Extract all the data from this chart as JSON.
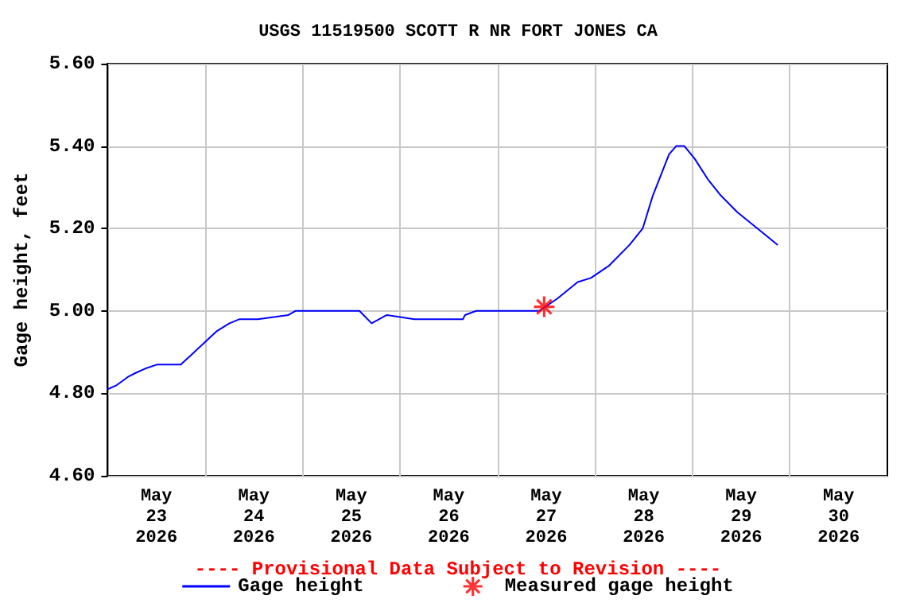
{
  "chart_data": {
    "type": "line",
    "title": "USGS 11519500 SCOTT R NR FORT JONES CA",
    "ylabel": "Gage height, feet",
    "annotations": [
      "---- Provisional Data Subject to Revision ----"
    ],
    "xlim": [
      "2026-05-23T00:00",
      "2026-05-31T00:00"
    ],
    "xticks": [
      {
        "value": "2026-05-23T12:00",
        "label": "May\n23\n2026"
      },
      {
        "value": "2026-05-24T12:00",
        "label": "May\n24\n2026"
      },
      {
        "value": "2026-05-25T12:00",
        "label": "May\n25\n2026"
      },
      {
        "value": "2026-05-26T12:00",
        "label": "May\n26\n2026"
      },
      {
        "value": "2026-05-27T12:00",
        "label": "May\n27\n2026"
      },
      {
        "value": "2026-05-28T12:00",
        "label": "May\n28\n2026"
      },
      {
        "value": "2026-05-29T12:00",
        "label": "May\n29\n2026"
      },
      {
        "value": "2026-05-30T12:00",
        "label": "May\n30\n2026"
      },
      {
        "value": "2026-05-24T00:00",
        "label": null
      },
      {
        "value": "2026-05-25T00:00",
        "label": null
      },
      {
        "value": "2026-05-26T00:00",
        "label": null
      },
      {
        "value": "2026-05-27T00:00",
        "label": null
      },
      {
        "value": "2026-05-28T00:00",
        "label": null
      },
      {
        "value": "2026-05-29T00:00",
        "label": null
      },
      {
        "value": "2026-05-30T00:00",
        "label": null
      }
    ],
    "ylim": [
      4.6,
      5.6
    ],
    "yticks": [
      {
        "value": 4.6,
        "label": "4.60"
      },
      {
        "value": 4.8,
        "label": "4.80"
      },
      {
        "value": 5.0,
        "label": "5.00"
      },
      {
        "value": 5.2,
        "label": "5.20"
      },
      {
        "value": 5.4,
        "label": "5.40"
      },
      {
        "value": 5.6,
        "label": "5.60"
      }
    ],
    "grid": true,
    "legend": "bottom",
    "series": [
      {
        "name": "Gage height",
        "color": "#0000ff",
        "marker": "none",
        "line_style": "solid",
        "x": [
          "2026-05-23T00:00",
          "2026-05-23T02:15",
          "2026-05-23T05:00",
          "2026-05-23T07:00",
          "2026-05-23T09:15",
          "2026-05-23T12:15",
          "2026-05-23T18:00",
          "2026-05-23T20:15",
          "2026-05-23T23:30",
          "2026-05-24T02:45",
          "2026-05-24T06:00",
          "2026-05-24T08:30",
          "2026-05-24T13:00",
          "2026-05-24T20:30",
          "2026-05-24T22:15",
          "2026-05-25T14:00",
          "2026-05-25T15:00",
          "2026-05-25T17:00",
          "2026-05-25T20:45",
          "2026-05-26T03:30",
          "2026-05-26T15:30",
          "2026-05-26T16:00",
          "2026-05-26T18:45",
          "2026-05-26T23:00",
          "2026-05-27T10:15",
          "2026-05-27T14:45",
          "2026-05-27T19:45",
          "2026-05-27T23:00",
          "2026-05-28T03:30",
          "2026-05-28T08:30",
          "2026-05-28T11:45",
          "2026-05-28T14:15",
          "2026-05-28T16:15",
          "2026-05-28T18:15",
          "2026-05-28T20:00",
          "2026-05-28T22:00",
          "2026-05-29T00:30",
          "2026-05-29T03:45",
          "2026-05-29T07:00",
          "2026-05-29T11:00",
          "2026-05-29T14:45",
          "2026-05-29T18:30",
          "2026-05-29T21:00"
        ],
        "values": [
          4.81,
          4.82,
          4.84,
          4.85,
          4.86,
          4.87,
          4.87,
          4.89,
          4.92,
          4.95,
          4.97,
          4.98,
          4.98,
          4.99,
          5.0,
          5.0,
          4.99,
          4.97,
          4.99,
          4.98,
          4.98,
          4.99,
          5.0,
          5.0,
          5.0,
          5.03,
          5.07,
          5.08,
          5.11,
          5.16,
          5.2,
          5.28,
          5.33,
          5.38,
          5.4,
          5.4,
          5.37,
          5.32,
          5.28,
          5.24,
          5.21,
          5.18,
          5.16
        ]
      },
      {
        "name": "Measured gage height",
        "type": "scatter",
        "color": "#ff0000",
        "marker": "cross",
        "x": [
          "2026-05-27T11:30"
        ],
        "values": [
          5.01
        ]
      }
    ]
  }
}
